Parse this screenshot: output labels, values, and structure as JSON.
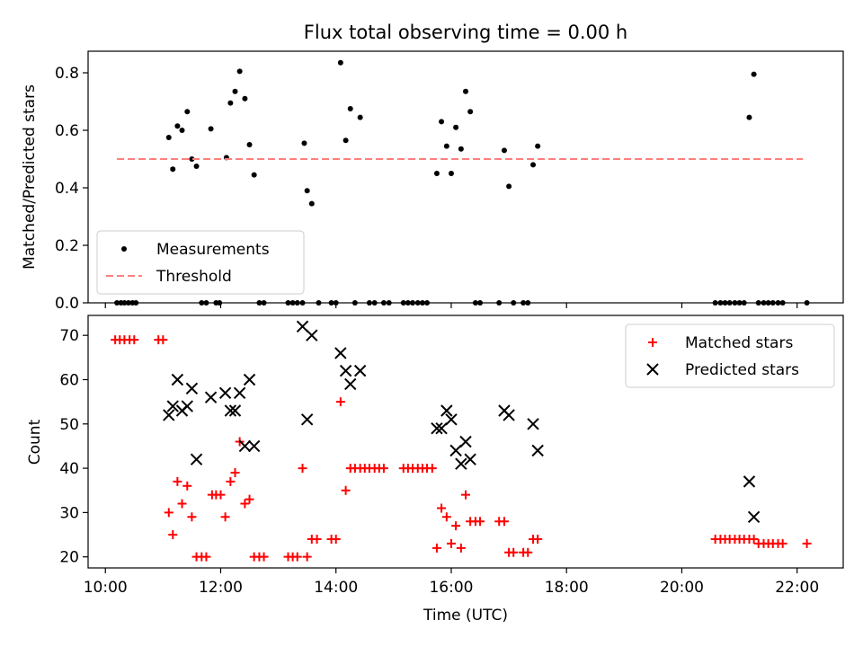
{
  "chart_data": [
    {
      "type": "scatter",
      "title": "Flux total observing time = 0.00 h",
      "xlabel": "",
      "ylabel": "Matched/Predicted stars",
      "xlim": [
        9.7,
        22.8
      ],
      "ylim": [
        0.0,
        0.875
      ],
      "yticks": [
        0.0,
        0.2,
        0.4,
        0.6,
        0.8
      ],
      "ytick_labels": [
        "0.0",
        "0.2",
        "0.4",
        "0.6",
        "0.8"
      ],
      "legend_position": "lower-left",
      "series": [
        {
          "name": "Measurements",
          "marker": "dot",
          "color": "#000000",
          "points": [
            [
              10.2,
              0
            ],
            [
              10.27,
              0
            ],
            [
              10.33,
              0
            ],
            [
              10.4,
              0
            ],
            [
              10.47,
              0
            ],
            [
              10.53,
              0
            ],
            [
              11.1,
              0.575
            ],
            [
              11.17,
              0.465
            ],
            [
              11.25,
              0.615
            ],
            [
              11.33,
              0.6
            ],
            [
              11.42,
              0.665
            ],
            [
              11.5,
              0.5
            ],
            [
              11.58,
              0.475
            ],
            [
              11.67,
              0
            ],
            [
              11.75,
              0
            ],
            [
              11.83,
              0.605
            ],
            [
              11.92,
              0
            ],
            [
              11.98,
              0
            ],
            [
              12.1,
              0.505
            ],
            [
              12.17,
              0.695
            ],
            [
              12.25,
              0.735
            ],
            [
              12.33,
              0.805
            ],
            [
              12.42,
              0.71
            ],
            [
              12.5,
              0.55
            ],
            [
              12.58,
              0.445
            ],
            [
              12.67,
              0
            ],
            [
              12.75,
              0
            ],
            [
              13.17,
              0
            ],
            [
              13.25,
              0
            ],
            [
              13.33,
              0
            ],
            [
              13.42,
              0
            ],
            [
              13.45,
              0.555
            ],
            [
              13.5,
              0.39
            ],
            [
              13.58,
              0.345
            ],
            [
              13.7,
              0
            ],
            [
              13.92,
              0
            ],
            [
              14.0,
              0
            ],
            [
              14.08,
              0.835
            ],
            [
              14.17,
              0.565
            ],
            [
              14.25,
              0.675
            ],
            [
              14.33,
              0
            ],
            [
              14.42,
              0.645
            ],
            [
              14.58,
              0
            ],
            [
              14.67,
              0
            ],
            [
              14.83,
              0
            ],
            [
              14.92,
              0
            ],
            [
              15.17,
              0
            ],
            [
              15.25,
              0
            ],
            [
              15.33,
              0
            ],
            [
              15.42,
              0
            ],
            [
              15.5,
              0
            ],
            [
              15.58,
              0
            ],
            [
              15.75,
              0.45
            ],
            [
              15.83,
              0.63
            ],
            [
              15.92,
              0.545
            ],
            [
              16.0,
              0.45
            ],
            [
              16.08,
              0.61
            ],
            [
              16.17,
              0.535
            ],
            [
              16.25,
              0.735
            ],
            [
              16.33,
              0.665
            ],
            [
              16.42,
              0
            ],
            [
              16.5,
              0
            ],
            [
              16.83,
              0
            ],
            [
              16.92,
              0.53
            ],
            [
              17.0,
              0.405
            ],
            [
              17.08,
              0
            ],
            [
              17.25,
              0
            ],
            [
              17.33,
              0
            ],
            [
              17.42,
              0.48
            ],
            [
              17.5,
              0.545
            ],
            [
              20.58,
              0
            ],
            [
              20.67,
              0
            ],
            [
              20.75,
              0
            ],
            [
              20.83,
              0
            ],
            [
              20.92,
              0
            ],
            [
              21.0,
              0
            ],
            [
              21.08,
              0
            ],
            [
              21.17,
              0.645
            ],
            [
              21.25,
              0.795
            ],
            [
              21.33,
              0
            ],
            [
              21.42,
              0
            ],
            [
              21.5,
              0
            ],
            [
              21.58,
              0
            ],
            [
              21.67,
              0
            ],
            [
              21.75,
              0
            ],
            [
              22.17,
              0
            ]
          ]
        },
        {
          "name": "Threshold",
          "style": "dashed",
          "color": "#ff7f7f",
          "x": [
            10.2,
            22.1
          ],
          "y": [
            0.5,
            0.5
          ]
        }
      ]
    },
    {
      "type": "scatter",
      "title": "",
      "xlabel": "Time (UTC)",
      "ylabel": "Count",
      "xlim": [
        9.7,
        22.8
      ],
      "ylim": [
        17.5,
        74.5
      ],
      "yticks": [
        20,
        30,
        40,
        50,
        60,
        70
      ],
      "ytick_labels": [
        "20",
        "30",
        "40",
        "50",
        "60",
        "70"
      ],
      "xticks": [
        10,
        12,
        14,
        16,
        18,
        20,
        22
      ],
      "xtick_labels": [
        "10:00",
        "12:00",
        "14:00",
        "16:00",
        "18:00",
        "20:00",
        "22:00"
      ],
      "legend_position": "upper-right",
      "series": [
        {
          "name": "Matched stars",
          "marker": "plus",
          "color": "#ff0000",
          "points": [
            [
              10.17,
              69
            ],
            [
              10.25,
              69
            ],
            [
              10.33,
              69
            ],
            [
              10.42,
              69
            ],
            [
              10.5,
              69
            ],
            [
              10.92,
              69
            ],
            [
              11.0,
              69
            ],
            [
              11.1,
              30
            ],
            [
              11.17,
              25
            ],
            [
              11.25,
              37
            ],
            [
              11.33,
              32
            ],
            [
              11.42,
              36
            ],
            [
              11.5,
              29
            ],
            [
              11.58,
              20
            ],
            [
              11.67,
              20
            ],
            [
              11.75,
              20
            ],
            [
              11.85,
              34
            ],
            [
              11.92,
              34
            ],
            [
              12.0,
              34
            ],
            [
              12.08,
              29
            ],
            [
              12.17,
              37
            ],
            [
              12.25,
              39
            ],
            [
              12.33,
              46
            ],
            [
              12.42,
              32
            ],
            [
              12.5,
              33
            ],
            [
              12.58,
              20
            ],
            [
              12.67,
              20
            ],
            [
              12.75,
              20
            ],
            [
              13.17,
              20
            ],
            [
              13.25,
              20
            ],
            [
              13.33,
              20
            ],
            [
              13.42,
              40
            ],
            [
              13.5,
              20
            ],
            [
              13.58,
              24
            ],
            [
              13.67,
              24
            ],
            [
              13.92,
              24
            ],
            [
              14.0,
              24
            ],
            [
              14.08,
              55
            ],
            [
              14.17,
              35
            ],
            [
              14.25,
              40
            ],
            [
              14.33,
              40
            ],
            [
              14.42,
              40
            ],
            [
              14.5,
              40
            ],
            [
              14.58,
              40
            ],
            [
              14.67,
              40
            ],
            [
              14.75,
              40
            ],
            [
              14.83,
              40
            ],
            [
              15.17,
              40
            ],
            [
              15.25,
              40
            ],
            [
              15.33,
              40
            ],
            [
              15.42,
              40
            ],
            [
              15.5,
              40
            ],
            [
              15.58,
              40
            ],
            [
              15.67,
              40
            ],
            [
              15.75,
              22
            ],
            [
              15.83,
              31
            ],
            [
              15.92,
              29
            ],
            [
              16.0,
              23
            ],
            [
              16.08,
              27
            ],
            [
              16.17,
              22
            ],
            [
              16.25,
              34
            ],
            [
              16.33,
              28
            ],
            [
              16.42,
              28
            ],
            [
              16.5,
              28
            ],
            [
              16.83,
              28
            ],
            [
              16.92,
              28
            ],
            [
              17.0,
              21
            ],
            [
              17.08,
              21
            ],
            [
              17.25,
              21
            ],
            [
              17.33,
              21
            ],
            [
              17.42,
              24
            ],
            [
              17.5,
              24
            ],
            [
              20.58,
              24
            ],
            [
              20.67,
              24
            ],
            [
              20.75,
              24
            ],
            [
              20.83,
              24
            ],
            [
              20.92,
              24
            ],
            [
              21.0,
              24
            ],
            [
              21.08,
              24
            ],
            [
              21.17,
              24
            ],
            [
              21.25,
              24
            ],
            [
              21.33,
              23
            ],
            [
              21.42,
              23
            ],
            [
              21.5,
              23
            ],
            [
              21.58,
              23
            ],
            [
              21.67,
              23
            ],
            [
              21.75,
              23
            ],
            [
              22.17,
              23
            ]
          ]
        },
        {
          "name": "Predicted stars",
          "marker": "x",
          "color": "#000000",
          "points": [
            [
              11.1,
              52
            ],
            [
              11.17,
              54
            ],
            [
              11.25,
              60
            ],
            [
              11.33,
              53
            ],
            [
              11.42,
              54
            ],
            [
              11.5,
              58
            ],
            [
              11.58,
              42
            ],
            [
              11.83,
              56
            ],
            [
              12.08,
              57
            ],
            [
              12.17,
              53
            ],
            [
              12.25,
              53
            ],
            [
              12.33,
              57
            ],
            [
              12.42,
              45
            ],
            [
              12.5,
              60
            ],
            [
              12.58,
              45
            ],
            [
              13.42,
              72
            ],
            [
              13.5,
              51
            ],
            [
              13.58,
              70
            ],
            [
              14.08,
              66
            ],
            [
              14.17,
              62
            ],
            [
              14.25,
              59
            ],
            [
              14.42,
              62
            ],
            [
              15.75,
              49
            ],
            [
              15.83,
              49
            ],
            [
              15.92,
              53
            ],
            [
              16.0,
              51
            ],
            [
              16.08,
              44
            ],
            [
              16.17,
              41
            ],
            [
              16.25,
              46
            ],
            [
              16.33,
              42
            ],
            [
              16.92,
              53
            ],
            [
              17.0,
              52
            ],
            [
              17.42,
              50
            ],
            [
              17.5,
              44
            ],
            [
              21.17,
              37
            ],
            [
              21.25,
              29
            ]
          ]
        }
      ]
    }
  ]
}
